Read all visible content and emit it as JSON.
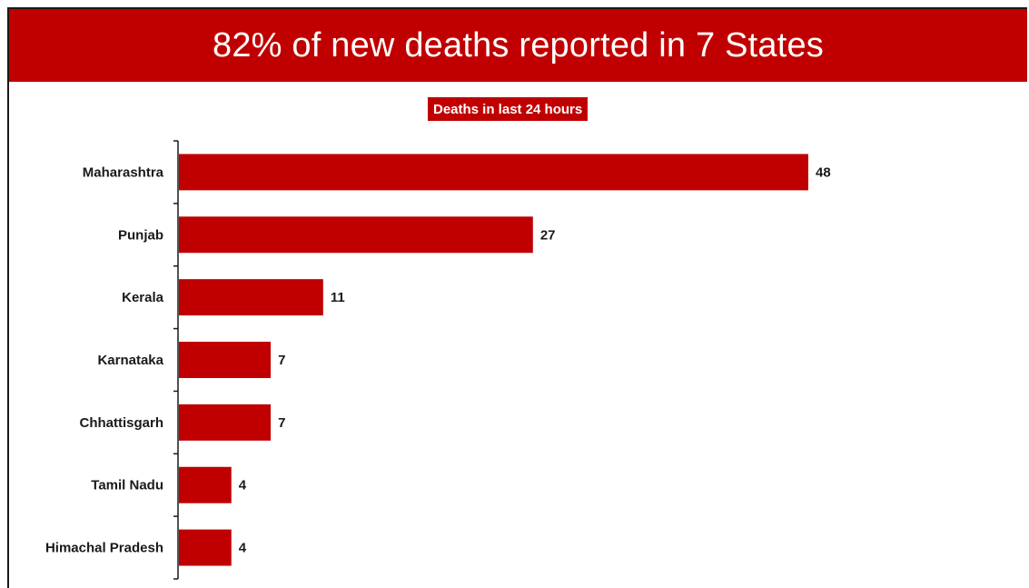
{
  "header": {
    "title": "82% of new deaths reported in 7 States"
  },
  "colors": {
    "accent": "#c00000",
    "bar": "#c00000",
    "text": "#1a1a1a"
  },
  "chart_data": {
    "type": "bar",
    "orientation": "horizontal",
    "title": "Deaths in last 24 hours",
    "categories": [
      "Maharashtra",
      "Punjab",
      "Kerala",
      "Karnataka",
      "Chhattisgarh",
      "Tamil Nadu",
      "Himachal Pradesh"
    ],
    "values": [
      48,
      27,
      11,
      7,
      7,
      4,
      4
    ],
    "xlabel": "",
    "ylabel": "",
    "xlim": [
      0,
      48
    ],
    "grid": false,
    "legend": "none",
    "data_labels": true
  }
}
